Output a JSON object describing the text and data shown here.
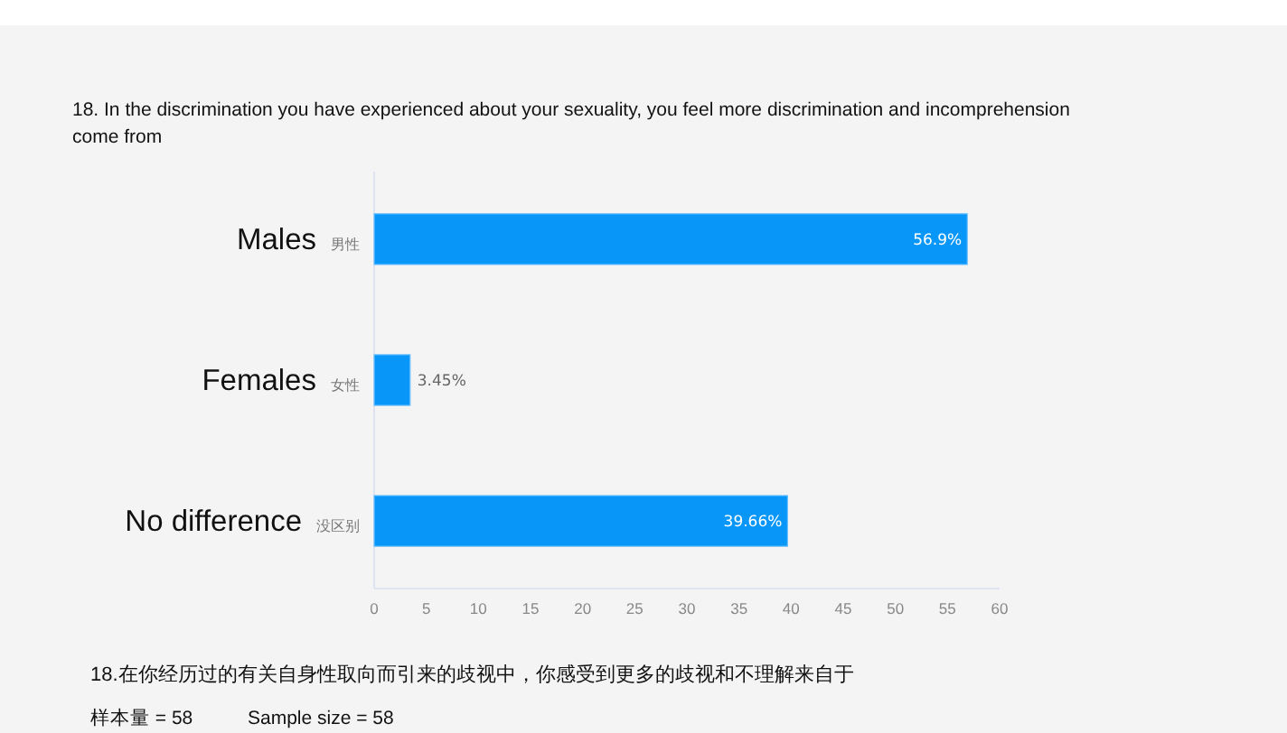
{
  "chart_data": {
    "type": "bar",
    "orientation": "horizontal",
    "title": "18. In the discrimination you have experienced about your sexuality, you feel more discrimination and incomprehension come from",
    "categories": [
      "Males 男性",
      "Females 女性",
      "No difference 没区别"
    ],
    "values": [
      56.9,
      3.45,
      39.66
    ],
    "color": "#0897f9",
    "value_labels": [
      "56.9%",
      "3.45%",
      "39.66%"
    ],
    "xlim": [
      0,
      60
    ],
    "xticks": [
      0,
      5,
      10,
      15,
      20,
      25,
      30,
      35,
      40,
      45,
      50,
      55,
      60
    ],
    "grid": false,
    "annotations": [
      "18.在你经历过的有关自身性取向而引来的歧视中，你感受到更多的歧视和不理解来自于",
      "样本量 = 58",
      "Sample size = 58"
    ]
  }
}
